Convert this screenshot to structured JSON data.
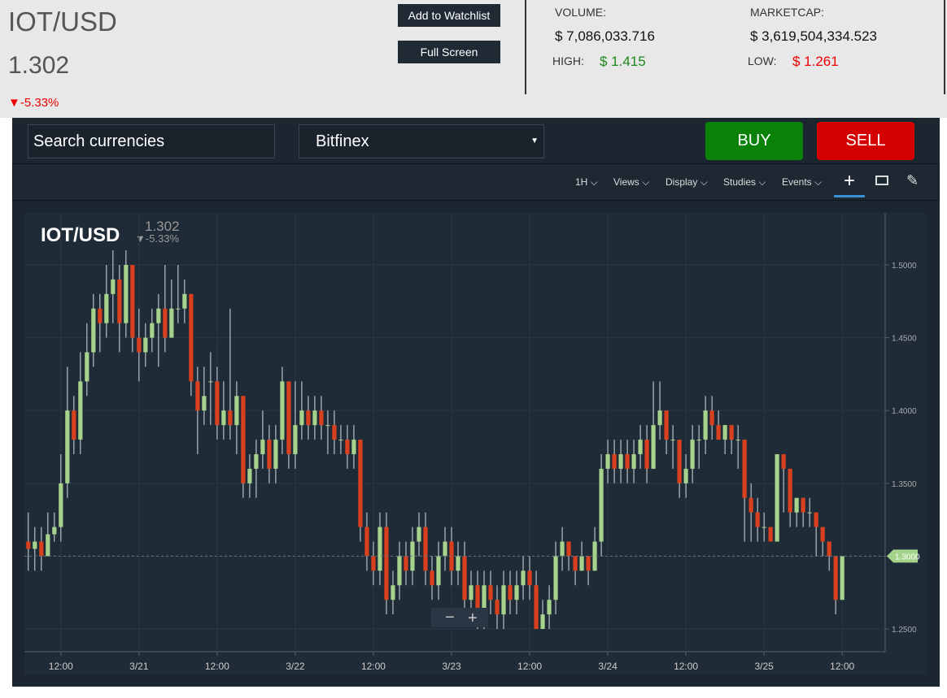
{
  "header": {
    "pair": "IOT/USD",
    "price": "1.302",
    "change": "-5.33%",
    "buttons": [
      "Add to Watchlist",
      "Full Screen"
    ],
    "stats": {
      "volume_label": "VOLUME:",
      "volume": "$ 7,086,033.716",
      "high_label": "HIGH:",
      "high": "$ 1.415",
      "marketcap_label": "MARKETCAP:",
      "marketcap": "$ 3,619,504,334.523",
      "low_label": "LOW:",
      "low": "$ 1.261"
    }
  },
  "toolbar": {
    "search": "Search currencies",
    "exchange": "Bitfinex",
    "buy": "BUY",
    "sell": "SELL",
    "menu": [
      "1H",
      "Views",
      "Display",
      "Studies",
      "Events"
    ]
  },
  "chart_data": {
    "type": "candlestick",
    "title": "IOT/USD",
    "last": "1.302",
    "change": "-5.33%",
    "up_color": "#a6d38c",
    "down_color": "#d9411e",
    "candles": [
      [
        1.31,
        1.33,
        1.29,
        1.305
      ],
      [
        1.305,
        1.32,
        1.29,
        1.31
      ],
      [
        1.31,
        1.32,
        1.29,
        1.3
      ],
      [
        1.3,
        1.33,
        1.3,
        1.315
      ],
      [
        1.315,
        1.33,
        1.31,
        1.32
      ],
      [
        1.32,
        1.37,
        1.31,
        1.35
      ],
      [
        1.35,
        1.43,
        1.34,
        1.4
      ],
      [
        1.4,
        1.41,
        1.37,
        1.38
      ],
      [
        1.38,
        1.44,
        1.37,
        1.42
      ],
      [
        1.42,
        1.46,
        1.41,
        1.44
      ],
      [
        1.44,
        1.48,
        1.43,
        1.47
      ],
      [
        1.47,
        1.48,
        1.44,
        1.46
      ],
      [
        1.46,
        1.5,
        1.45,
        1.48
      ],
      [
        1.48,
        1.51,
        1.46,
        1.49
      ],
      [
        1.49,
        1.5,
        1.44,
        1.46
      ],
      [
        1.46,
        1.51,
        1.45,
        1.5
      ],
      [
        1.5,
        1.5,
        1.44,
        1.45
      ],
      [
        1.45,
        1.47,
        1.42,
        1.44
      ],
      [
        1.44,
        1.46,
        1.43,
        1.45
      ],
      [
        1.45,
        1.47,
        1.44,
        1.46
      ],
      [
        1.46,
        1.48,
        1.43,
        1.47
      ],
      [
        1.47,
        1.5,
        1.44,
        1.45
      ],
      [
        1.45,
        1.49,
        1.45,
        1.47
      ],
      [
        1.47,
        1.5,
        1.46,
        1.47
      ],
      [
        1.47,
        1.49,
        1.46,
        1.48
      ],
      [
        1.48,
        1.48,
        1.41,
        1.42
      ],
      [
        1.42,
        1.43,
        1.37,
        1.4
      ],
      [
        1.4,
        1.43,
        1.39,
        1.41
      ],
      [
        1.42,
        1.44,
        1.39,
        1.42
      ],
      [
        1.42,
        1.43,
        1.38,
        1.39
      ],
      [
        1.39,
        1.42,
        1.38,
        1.4
      ],
      [
        1.4,
        1.47,
        1.38,
        1.39
      ],
      [
        1.39,
        1.42,
        1.37,
        1.41
      ],
      [
        1.41,
        1.41,
        1.34,
        1.35
      ],
      [
        1.35,
        1.37,
        1.34,
        1.36
      ],
      [
        1.36,
        1.38,
        1.34,
        1.37
      ],
      [
        1.37,
        1.4,
        1.36,
        1.38
      ],
      [
        1.38,
        1.39,
        1.35,
        1.36
      ],
      [
        1.36,
        1.39,
        1.35,
        1.38
      ],
      [
        1.38,
        1.43,
        1.37,
        1.42
      ],
      [
        1.42,
        1.42,
        1.36,
        1.37
      ],
      [
        1.37,
        1.42,
        1.36,
        1.39
      ],
      [
        1.39,
        1.42,
        1.38,
        1.4
      ],
      [
        1.4,
        1.41,
        1.38,
        1.39
      ],
      [
        1.39,
        1.41,
        1.38,
        1.4
      ],
      [
        1.4,
        1.41,
        1.38,
        1.39
      ],
      [
        1.39,
        1.4,
        1.37,
        1.39
      ],
      [
        1.39,
        1.4,
        1.37,
        1.38
      ],
      [
        1.38,
        1.39,
        1.37,
        1.38
      ],
      [
        1.38,
        1.39,
        1.36,
        1.37
      ],
      [
        1.37,
        1.39,
        1.36,
        1.38
      ],
      [
        1.38,
        1.38,
        1.31,
        1.32
      ],
      [
        1.32,
        1.33,
        1.29,
        1.3
      ],
      [
        1.3,
        1.31,
        1.28,
        1.29
      ],
      [
        1.29,
        1.33,
        1.28,
        1.32
      ],
      [
        1.32,
        1.33,
        1.26,
        1.27
      ],
      [
        1.27,
        1.29,
        1.26,
        1.28
      ],
      [
        1.28,
        1.31,
        1.27,
        1.3
      ],
      [
        1.3,
        1.31,
        1.28,
        1.29
      ],
      [
        1.29,
        1.32,
        1.28,
        1.31
      ],
      [
        1.31,
        1.33,
        1.3,
        1.32
      ],
      [
        1.32,
        1.33,
        1.28,
        1.29
      ],
      [
        1.29,
        1.3,
        1.27,
        1.28
      ],
      [
        1.28,
        1.31,
        1.27,
        1.3
      ],
      [
        1.3,
        1.32,
        1.29,
        1.31
      ],
      [
        1.31,
        1.32,
        1.28,
        1.29
      ],
      [
        1.29,
        1.31,
        1.28,
        1.3
      ],
      [
        1.3,
        1.31,
        1.26,
        1.27
      ],
      [
        1.27,
        1.29,
        1.26,
        1.28
      ],
      [
        1.28,
        1.29,
        1.25,
        1.26
      ],
      [
        1.26,
        1.29,
        1.25,
        1.28
      ],
      [
        1.28,
        1.29,
        1.26,
        1.27
      ],
      [
        1.27,
        1.28,
        1.25,
        1.26
      ],
      [
        1.26,
        1.29,
        1.25,
        1.28
      ],
      [
        1.28,
        1.29,
        1.26,
        1.27
      ],
      [
        1.27,
        1.29,
        1.26,
        1.28
      ],
      [
        1.28,
        1.3,
        1.27,
        1.29
      ],
      [
        1.29,
        1.3,
        1.27,
        1.28
      ],
      [
        1.28,
        1.29,
        1.25,
        1.25
      ],
      [
        1.25,
        1.27,
        1.25,
        1.26
      ],
      [
        1.26,
        1.28,
        1.25,
        1.27
      ],
      [
        1.27,
        1.31,
        1.26,
        1.3
      ],
      [
        1.3,
        1.32,
        1.29,
        1.31
      ],
      [
        1.31,
        1.31,
        1.29,
        1.3
      ],
      [
        1.3,
        1.3,
        1.28,
        1.29
      ],
      [
        1.29,
        1.31,
        1.29,
        1.3
      ],
      [
        1.3,
        1.3,
        1.28,
        1.29
      ],
      [
        1.29,
        1.32,
        1.29,
        1.31
      ],
      [
        1.31,
        1.37,
        1.3,
        1.36
      ],
      [
        1.36,
        1.38,
        1.35,
        1.37
      ],
      [
        1.37,
        1.38,
        1.35,
        1.36
      ],
      [
        1.36,
        1.38,
        1.35,
        1.37
      ],
      [
        1.37,
        1.38,
        1.35,
        1.36
      ],
      [
        1.36,
        1.38,
        1.35,
        1.37
      ],
      [
        1.37,
        1.39,
        1.36,
        1.38
      ],
      [
        1.38,
        1.39,
        1.35,
        1.36
      ],
      [
        1.36,
        1.42,
        1.36,
        1.39
      ],
      [
        1.39,
        1.42,
        1.38,
        1.4
      ],
      [
        1.4,
        1.4,
        1.37,
        1.38
      ],
      [
        1.38,
        1.39,
        1.36,
        1.38
      ],
      [
        1.38,
        1.38,
        1.34,
        1.35
      ],
      [
        1.35,
        1.37,
        1.34,
        1.36
      ],
      [
        1.36,
        1.39,
        1.35,
        1.38
      ],
      [
        1.38,
        1.39,
        1.36,
        1.38
      ],
      [
        1.38,
        1.41,
        1.37,
        1.4
      ],
      [
        1.4,
        1.41,
        1.38,
        1.39
      ],
      [
        1.39,
        1.4,
        1.38,
        1.38
      ],
      [
        1.38,
        1.39,
        1.37,
        1.39
      ],
      [
        1.39,
        1.39,
        1.37,
        1.38
      ],
      [
        1.38,
        1.39,
        1.36,
        1.38
      ],
      [
        1.38,
        1.38,
        1.31,
        1.34
      ],
      [
        1.34,
        1.35,
        1.31,
        1.33
      ],
      [
        1.33,
        1.34,
        1.31,
        1.32
      ],
      [
        1.32,
        1.33,
        1.31,
        1.32
      ],
      [
        1.32,
        1.32,
        1.31,
        1.31
      ],
      [
        1.31,
        1.37,
        1.31,
        1.37
      ],
      [
        1.37,
        1.37,
        1.33,
        1.36
      ],
      [
        1.36,
        1.36,
        1.32,
        1.33
      ],
      [
        1.33,
        1.34,
        1.32,
        1.34
      ],
      [
        1.34,
        1.34,
        1.32,
        1.33
      ],
      [
        1.33,
        1.34,
        1.32,
        1.33
      ],
      [
        1.33,
        1.33,
        1.3,
        1.32
      ],
      [
        1.32,
        1.32,
        1.3,
        1.31
      ],
      [
        1.31,
        1.31,
        1.29,
        1.3
      ],
      [
        1.3,
        1.3,
        1.26,
        1.27
      ],
      [
        1.27,
        1.3,
        1.27,
        1.3
      ]
    ],
    "xlim": [
      -0.6,
      131.6
    ],
    "xticks": [
      {
        "value": 5,
        "label": "12:00"
      },
      {
        "value": 17,
        "label": "3/21"
      },
      {
        "value": 29,
        "label": "12:00"
      },
      {
        "value": 41,
        "label": "3/22"
      },
      {
        "value": 53,
        "label": "12:00"
      },
      {
        "value": 65,
        "label": "3/23"
      },
      {
        "value": 77,
        "label": "12:00"
      },
      {
        "value": 89,
        "label": "3/24"
      },
      {
        "value": 101,
        "label": "12:00"
      },
      {
        "value": 113,
        "label": "3/25"
      },
      {
        "value": 125,
        "label": "12:00"
      }
    ],
    "ylim": [
      1.2344,
      1.5357
    ],
    "yticks": [
      {
        "value": 1.25,
        "label": "1.2500"
      },
      {
        "value": 1.3,
        "label": "1.3000"
      },
      {
        "value": 1.35,
        "label": "1.3500"
      },
      {
        "value": 1.4,
        "label": "1.4000"
      },
      {
        "value": 1.45,
        "label": "1.4500"
      },
      {
        "value": 1.5,
        "label": "1.5000"
      }
    ],
    "last_price": {
      "value": 1.3,
      "label": "1.3000"
    },
    "grid": true
  }
}
